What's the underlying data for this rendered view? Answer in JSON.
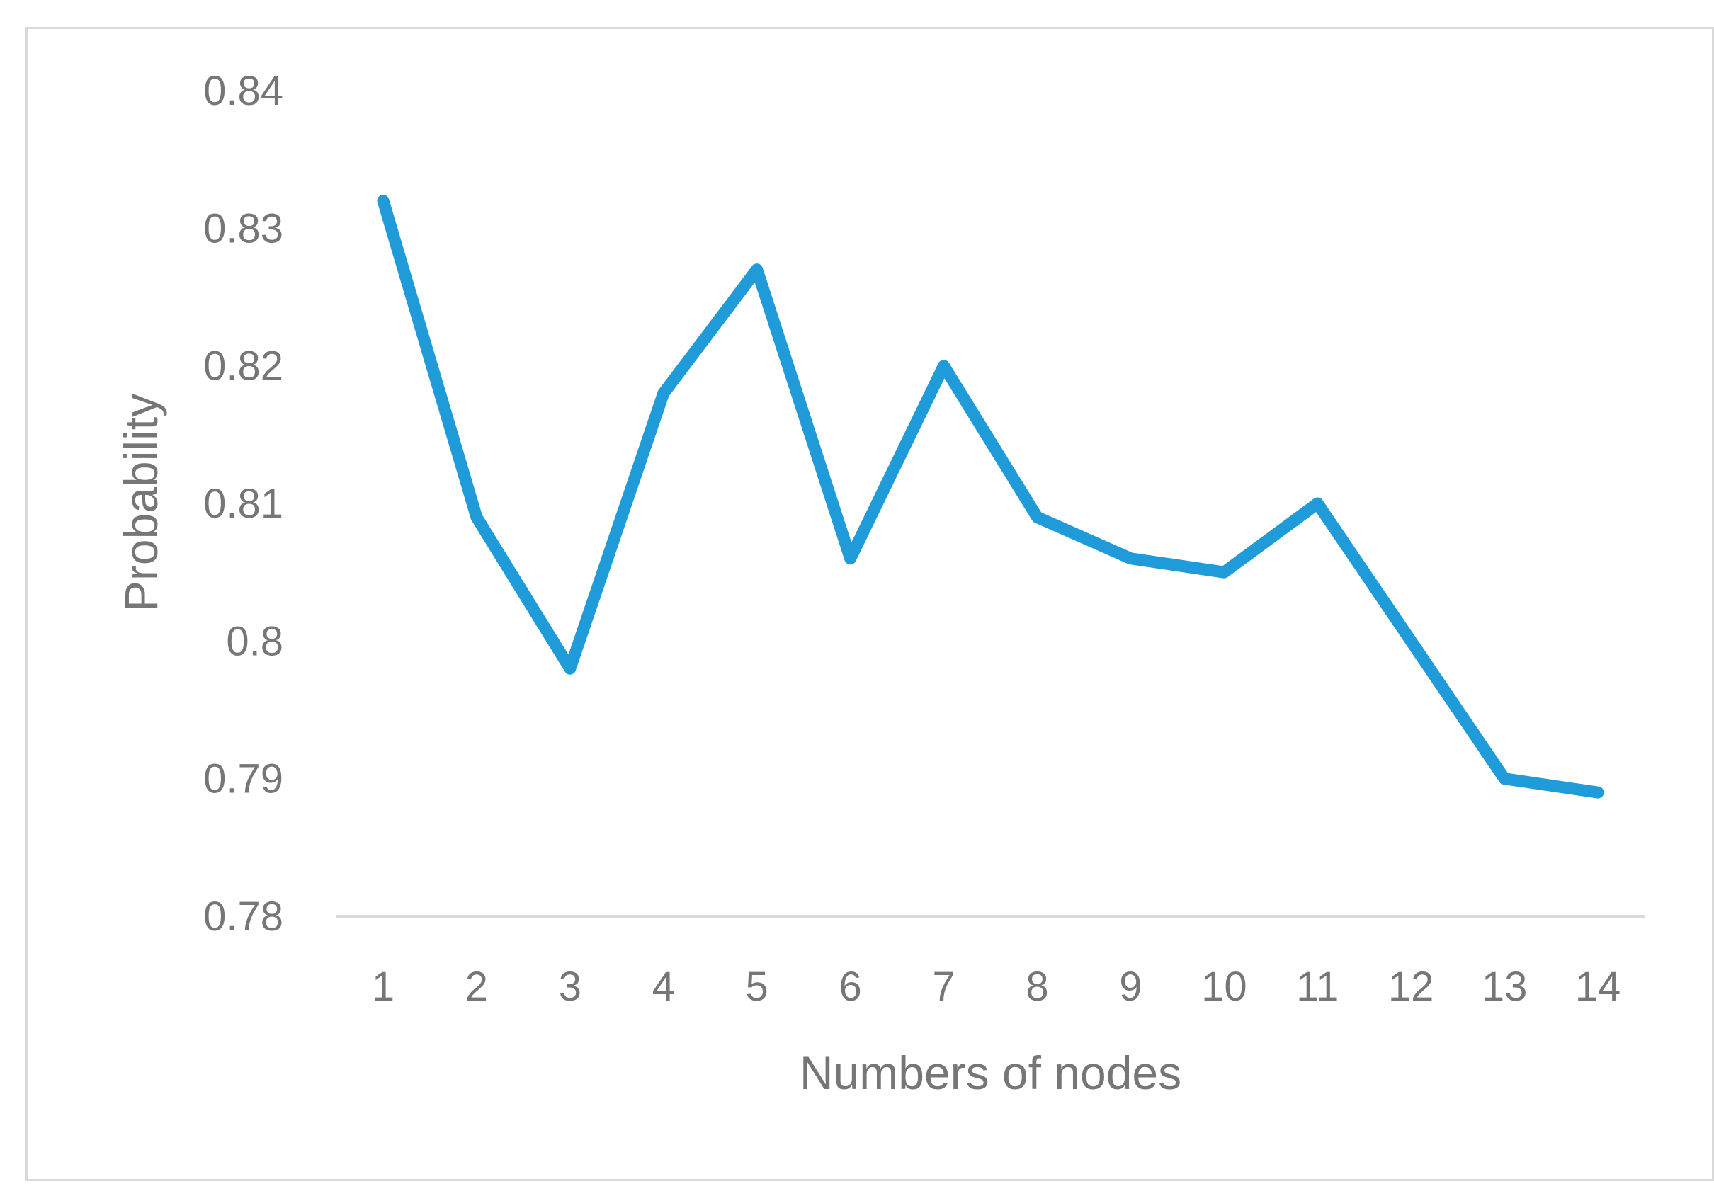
{
  "chart_data": {
    "type": "line",
    "title": "",
    "xlabel": "Numbers of nodes",
    "ylabel": "Probability",
    "categories": [
      "1",
      "2",
      "3",
      "4",
      "5",
      "6",
      "7",
      "8",
      "9",
      "10",
      "11",
      "12",
      "13",
      "14"
    ],
    "series": [
      {
        "values": [
          0.832,
          0.809,
          0.798,
          0.818,
          0.827,
          0.806,
          0.82,
          0.809,
          0.806,
          0.805,
          0.81,
          0.8,
          0.79,
          0.789
        ]
      }
    ],
    "y_ticks": [
      "0.78",
      "0.79",
      "0.8",
      "0.81",
      "0.82",
      "0.83",
      "0.84"
    ],
    "ylim": [
      0.78,
      0.84
    ],
    "grid": false,
    "legend": "none",
    "colors": {
      "line": "#1f9bd9",
      "axis": "#d9d9d9",
      "text": "#767676",
      "frame": "#d9d9d9"
    }
  }
}
